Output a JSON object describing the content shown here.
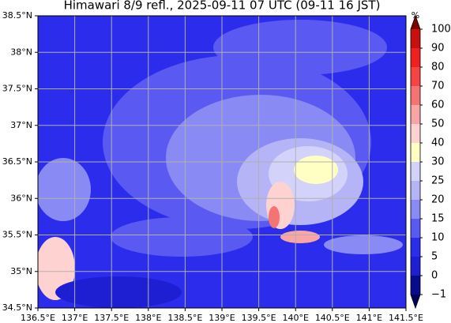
{
  "title": "Himawari 8/9 refl., 2025-09-11 07 UTC (09-11 16 JST)",
  "map": {
    "lonlim": [
      136.5,
      141.5
    ],
    "latlim": [
      34.5,
      38.5
    ],
    "lon_ticks": [
      {
        "value": 136.5,
        "label": "136.5°E"
      },
      {
        "value": 137,
        "label": "137°E"
      },
      {
        "value": 137.5,
        "label": "137.5°E"
      },
      {
        "value": 138,
        "label": "138°E"
      },
      {
        "value": 138.5,
        "label": "138.5°E"
      },
      {
        "value": 139,
        "label": "139°E"
      },
      {
        "value": 139.5,
        "label": "139.5°E"
      },
      {
        "value": 140,
        "label": "140°E"
      },
      {
        "value": 140.5,
        "label": "140.5°E"
      },
      {
        "value": 141,
        "label": "141°E"
      },
      {
        "value": 141.5,
        "label": "141.5°E"
      }
    ],
    "lat_ticks": [
      {
        "value": 34.5,
        "label": "34.5°N"
      },
      {
        "value": 35,
        "label": "35°N"
      },
      {
        "value": 35.5,
        "label": "35.5°N"
      },
      {
        "value": 36,
        "label": "36°N"
      },
      {
        "value": 36.5,
        "label": "36.5°N"
      },
      {
        "value": 37,
        "label": "37°N"
      },
      {
        "value": 37.5,
        "label": "37.5°N"
      },
      {
        "value": 38,
        "label": "38°N"
      },
      {
        "value": 38.5,
        "label": "38.5°N"
      }
    ]
  },
  "colorbar": {
    "unit": "%",
    "ticks": [
      {
        "value": -1,
        "label": "−1"
      },
      0,
      5,
      10,
      15,
      20,
      25,
      30,
      40,
      50,
      60,
      70,
      80,
      90,
      100
    ],
    "colors": [
      "#0a0a8c",
      "#1e1ed2",
      "#2c2cec",
      "#5a5af2",
      "#8a8af4",
      "#b4b4f6",
      "#d2d2fa",
      "#ffffc4",
      "#ffd2d2",
      "#f7a5a5",
      "#f47474",
      "#f44444",
      "#f02020",
      "#c81010"
    ],
    "under_color": "#00005a",
    "over_color": "#800000"
  }
}
